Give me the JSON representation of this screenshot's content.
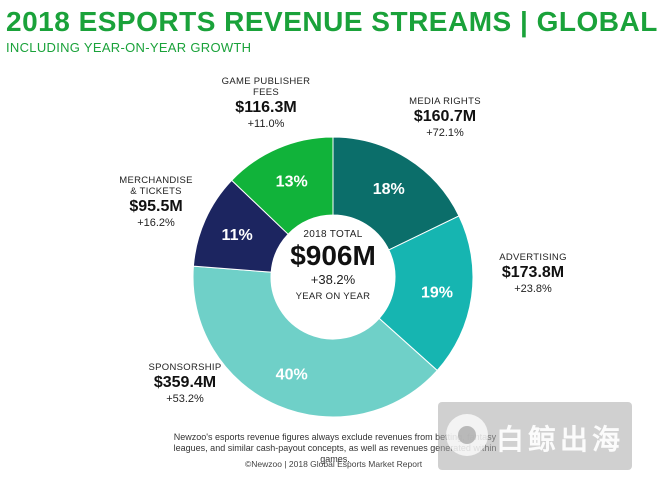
{
  "header": {
    "title": "2018 ESPORTS REVENUE STREAMS | GLOBAL",
    "subtitle": "INCLUDING YEAR-ON-YEAR GROWTH"
  },
  "center": {
    "title": "2018 TOTAL",
    "value": "$906M",
    "growth": "+38.2%",
    "note": "YEAR ON YEAR"
  },
  "chart_data": {
    "type": "pie",
    "style": "donut",
    "title": "2018 ESPORTS REVENUE STREAMS | GLOBAL",
    "total": "$906M",
    "slices": [
      {
        "name": "MEDIA RIGHTS",
        "percent": 18,
        "percent_label": "18%",
        "value_label": "$160.7M",
        "value": 160.7,
        "growth": "+72.1%",
        "color": "#0b6e6a"
      },
      {
        "name": "ADVERTISING",
        "percent": 19,
        "percent_label": "19%",
        "value_label": "$173.8M",
        "value": 173.8,
        "growth": "+23.8%",
        "color": "#16b5b1"
      },
      {
        "name": "SPONSORSHIP",
        "percent": 40,
        "percent_label": "40%",
        "value_label": "$359.4M",
        "value": 359.4,
        "growth": "+53.2%",
        "color": "#6fd0c8"
      },
      {
        "name": "MERCHANDISE\n& TICKETS",
        "percent": 11,
        "percent_label": "11%",
        "value_label": "$95.5M",
        "value": 95.5,
        "growth": "+16.2%",
        "color": "#1c2560"
      },
      {
        "name": "GAME PUBLISHER\nFEES",
        "percent": 13,
        "percent_label": "13%",
        "value_label": "$116.3M",
        "value": 116.3,
        "growth": "+11.0%",
        "color": "#11b33a"
      }
    ]
  },
  "footnote": "Newzoo's esports revenue figures always exclude revenues from betting, fantasy leagues, and similar cash-payout concepts, as well as revenues generated within games.",
  "source": "©Newzoo | 2018 Global Esports Market Report",
  "watermark": {
    "text": "白鲸出海"
  }
}
